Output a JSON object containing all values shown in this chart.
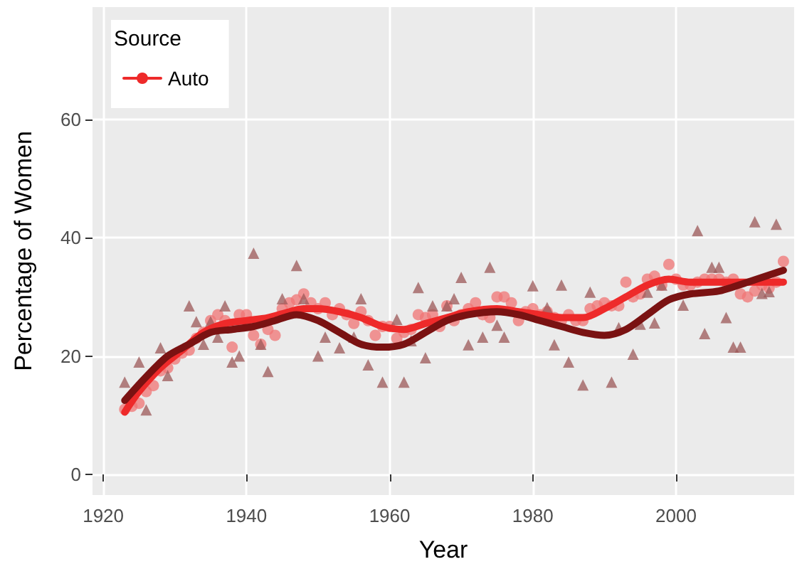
{
  "chart_data": {
    "type": "scatter",
    "xlabel": "Year",
    "ylabel": "Percentage of Women",
    "legend_title": "Source",
    "legend": "top left",
    "grid": true,
    "xlim": [
      1918.5,
      2016.5
    ],
    "xticks": [
      1920,
      1940,
      1960,
      1980,
      2000
    ],
    "ylim": [
      -3.5,
      79
    ],
    "yticks": [
      0,
      20,
      40,
      60
    ],
    "series": [
      {
        "marker": "circle",
        "color": "#f07474",
        "x": [
          1923,
          1924,
          1925,
          1926,
          1927,
          1928,
          1929,
          1930,
          1931,
          1932,
          1933,
          1934,
          1935,
          1936,
          1937,
          1938,
          1939,
          1940,
          1941,
          1942,
          1943,
          1944,
          1945,
          1946,
          1947,
          1948,
          1949,
          1950,
          1951,
          1952,
          1953,
          1954,
          1955,
          1956,
          1957,
          1958,
          1959,
          1960,
          1961,
          1962,
          1963,
          1964,
          1965,
          1966,
          1967,
          1968,
          1969,
          1970,
          1971,
          1972,
          1973,
          1974,
          1975,
          1976,
          1977,
          1978,
          1979,
          1980,
          1981,
          1982,
          1983,
          1984,
          1985,
          1986,
          1987,
          1988,
          1989,
          1990,
          1991,
          1992,
          1993,
          1994,
          1995,
          1996,
          1997,
          1998,
          1999,
          2000,
          2001,
          2002,
          2003,
          2004,
          2005,
          2006,
          2007,
          2008,
          2009,
          2010,
          2011,
          2012,
          2013,
          2014,
          2015
        ],
        "values": [
          11,
          11.5,
          12,
          14,
          15,
          17.5,
          18,
          19.5,
          20.5,
          21,
          23,
          24,
          26,
          27,
          26,
          21.5,
          27,
          27,
          23.5,
          22,
          24.5,
          23.5,
          28,
          29,
          29.5,
          30.5,
          29,
          28,
          29,
          27,
          28,
          27,
          25.5,
          27.5,
          26,
          23.5,
          25,
          25,
          23,
          24,
          24.5,
          27,
          26.5,
          27,
          25,
          28.5,
          26,
          27,
          28,
          29,
          27,
          26.5,
          30,
          30,
          29,
          26,
          27.5,
          28,
          27,
          27.5,
          26.5,
          26,
          27,
          26,
          26,
          28,
          28.5,
          29,
          28.5,
          28.5,
          32.5,
          30,
          30.5,
          33,
          33.5,
          32,
          35.5,
          33,
          32,
          32,
          32.5,
          33,
          33,
          33,
          32.5,
          33,
          30.5,
          30,
          31,
          32,
          31.5,
          32.5,
          36
        ]
      },
      {
        "marker": "triangle",
        "color": "#9c5858",
        "x": [
          1923,
          1925,
          1926,
          1928,
          1929,
          1932,
          1933,
          1934,
          1935,
          1936,
          1937,
          1938,
          1939,
          1941,
          1942,
          1943,
          1945,
          1947,
          1948,
          1950,
          1951,
          1953,
          1955,
          1956,
          1957,
          1959,
          1961,
          1962,
          1963,
          1964,
          1965,
          1966,
          1968,
          1969,
          1970,
          1971,
          1973,
          1974,
          1975,
          1976,
          1980,
          1982,
          1983,
          1984,
          1985,
          1987,
          1988,
          1991,
          1992,
          1994,
          1995,
          1996,
          1997,
          1998,
          2001,
          2003,
          2004,
          2005,
          2006,
          2007,
          2008,
          2009,
          2011,
          2012,
          2013,
          2014
        ],
        "values": [
          15.6,
          19,
          10.9,
          21.4,
          16.7,
          28.5,
          25.8,
          22,
          25.8,
          23.2,
          28.5,
          19,
          20,
          37.4,
          22,
          17.4,
          29.7,
          35.3,
          29.7,
          20,
          23.2,
          21.4,
          23.2,
          29.7,
          18.5,
          15.6,
          26.2,
          15.6,
          22.6,
          31.6,
          19.7,
          28.5,
          28.5,
          29.7,
          33.3,
          21.9,
          23.2,
          35,
          25.2,
          23.2,
          31.9,
          28.2,
          21.9,
          32,
          19,
          15.1,
          30.8,
          15.6,
          24.8,
          20.3,
          25.4,
          30.8,
          25.6,
          32,
          28.6,
          41.2,
          23.8,
          35,
          35,
          26.5,
          21.5,
          21.5,
          42.7,
          30.6,
          30.9,
          42.3
        ]
      },
      {
        "type": "line",
        "name": "Auto",
        "marker": "none",
        "color": "#ee2a2a",
        "x": [
          1923,
          1925,
          1928,
          1931,
          1934,
          1937,
          1940,
          1943,
          1946,
          1948,
          1950,
          1953,
          1956,
          1959,
          1962,
          1965,
          1968,
          1971,
          1975,
          1978,
          1981,
          1984,
          1987,
          1990,
          1993,
          1996,
          1999,
          2002,
          2006,
          2010,
          2015
        ],
        "values": [
          10.5,
          14,
          18,
          21,
          24,
          25.5,
          26,
          26.5,
          27.5,
          28,
          28,
          27.5,
          26.5,
          25,
          24.5,
          25.5,
          26.5,
          27.5,
          28,
          27.5,
          27,
          26.5,
          26.5,
          28,
          30,
          32,
          33,
          32.5,
          32.5,
          32.5,
          32.5
        ]
      },
      {
        "type": "line",
        "marker": "none",
        "color": "#7a1212",
        "x": [
          1923,
          1926,
          1929,
          1932,
          1935,
          1938,
          1941,
          1944,
          1947,
          1950,
          1953,
          1956,
          1959,
          1962,
          1965,
          1968,
          1971,
          1975,
          1978,
          1981,
          1984,
          1987,
          1990,
          1993,
          1996,
          1999,
          2002,
          2006,
          2010,
          2015
        ],
        "values": [
          12.5,
          16.5,
          20,
          22,
          24,
          24.5,
          25,
          26,
          27,
          26,
          24,
          22,
          21.5,
          22,
          24,
          26,
          27,
          27.5,
          27,
          26,
          25,
          24,
          23.5,
          24.5,
          27,
          29.5,
          30.5,
          31,
          32.5,
          34.5
        ]
      }
    ]
  }
}
